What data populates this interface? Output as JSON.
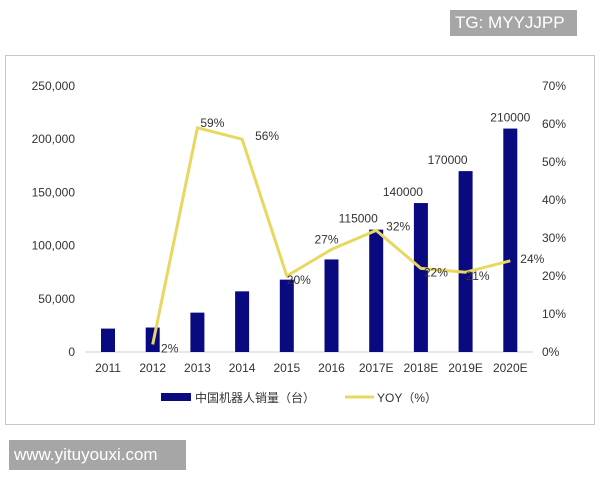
{
  "watermarks": {
    "top": "TG: MYYJJPP",
    "bottom": "www.yituyouxi.com"
  },
  "chart_data": {
    "type": "bar+line",
    "categories": [
      "2011",
      "2012",
      "2013",
      "2014",
      "2015",
      "2016",
      "2017E",
      "2018E",
      "2019E",
      "2020E"
    ],
    "series": [
      {
        "name": "中国机器人销量（台）",
        "type": "bar",
        "axis": "left",
        "color": "#0a0a80",
        "values": [
          22000,
          23000,
          37000,
          57000,
          68000,
          87000,
          115000,
          140000,
          170000,
          210000
        ],
        "data_labels": [
          null,
          null,
          null,
          null,
          null,
          null,
          "115000",
          "140000",
          "170000",
          "210000"
        ]
      },
      {
        "name": "YOY（%）",
        "type": "line",
        "axis": "right",
        "color": "#e8d860",
        "values": [
          null,
          2,
          59,
          56,
          20,
          27,
          32,
          22,
          21,
          24
        ],
        "data_labels": [
          null,
          "2%",
          "59%",
          "56%",
          "20%",
          "27%",
          "32%",
          "22%",
          "21%",
          "24%"
        ]
      }
    ],
    "left_axis": {
      "ylim": [
        0,
        250000
      ],
      "ticks": [
        "0",
        "50,000",
        "100,000",
        "150,000",
        "200,000",
        "250,000"
      ]
    },
    "right_axis": {
      "ylim": [
        0,
        70
      ],
      "ticks": [
        "0%",
        "10%",
        "20%",
        "30%",
        "40%",
        "50%",
        "60%",
        "70%"
      ]
    },
    "legend": "bottom",
    "grid": false
  }
}
